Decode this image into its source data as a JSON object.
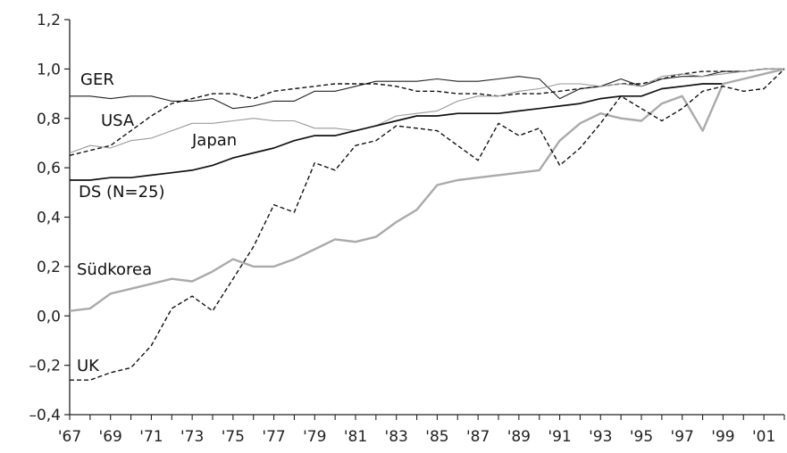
{
  "chart_data": {
    "type": "line",
    "title": "",
    "xlabel": "",
    "ylabel": "",
    "x": [
      1967,
      1968,
      1969,
      1970,
      1971,
      1972,
      1973,
      1974,
      1975,
      1976,
      1977,
      1978,
      1979,
      1980,
      1981,
      1982,
      1983,
      1984,
      1985,
      1986,
      1987,
      1988,
      1989,
      1990,
      1991,
      1992,
      1993,
      1994,
      1995,
      1996,
      1997,
      1998,
      1999,
      2000,
      2001,
      2002
    ],
    "xlim": [
      1967,
      2002
    ],
    "ylim": [
      -0.4,
      1.2
    ],
    "x_ticks": [
      1967,
      1969,
      1971,
      1973,
      1975,
      1977,
      1979,
      1981,
      1983,
      1985,
      1987,
      1989,
      1991,
      1993,
      1995,
      1997,
      1999,
      2001
    ],
    "x_tick_labels": [
      "'67",
      "'69",
      "'71",
      "'73",
      "'75",
      "'77",
      "'79",
      "'81",
      "'83",
      "'85",
      "'87",
      "'89",
      "'91",
      "'93",
      "'95",
      "'97",
      "'99",
      "'01"
    ],
    "y_ticks": [
      -0.4,
      -0.2,
      0.0,
      0.2,
      0.4,
      0.6,
      0.8,
      1.0,
      1.2
    ],
    "y_tick_labels": [
      "–0,4",
      "–0,2",
      "0,0",
      "0,2",
      "0,4",
      "0,6",
      "0,8",
      "1,0",
      "1,2"
    ],
    "grid": false,
    "legend": "inline-labels",
    "series": [
      {
        "name": "GER",
        "color": "#222222",
        "style": "solid-thin",
        "values": [
          0.89,
          0.89,
          0.88,
          0.89,
          0.89,
          0.87,
          0.87,
          0.88,
          0.84,
          0.85,
          0.87,
          0.87,
          0.91,
          0.91,
          0.93,
          0.95,
          0.95,
          0.95,
          0.96,
          0.95,
          0.95,
          0.96,
          0.97,
          0.96,
          0.88,
          0.92,
          0.93,
          0.96,
          0.93,
          0.96,
          0.97,
          0.97,
          0.99,
          0.99,
          1.0,
          1.0
        ]
      },
      {
        "name": "USA",
        "color": "#111111",
        "style": "dashed",
        "values": [
          0.65,
          0.67,
          0.69,
          0.75,
          0.81,
          0.86,
          0.88,
          0.9,
          0.9,
          0.88,
          0.91,
          0.92,
          0.93,
          0.94,
          0.94,
          0.94,
          0.93,
          0.91,
          0.91,
          0.9,
          0.9,
          0.89,
          0.9,
          0.9,
          0.91,
          0.92,
          0.93,
          0.94,
          0.94,
          0.96,
          0.98,
          0.99,
          0.99,
          0.99,
          1.0,
          1.0
        ]
      },
      {
        "name": "Japan",
        "color": "#999999",
        "style": "solid-thin",
        "values": [
          0.66,
          0.69,
          0.68,
          0.71,
          0.72,
          0.75,
          0.78,
          0.78,
          0.79,
          0.8,
          0.79,
          0.79,
          0.76,
          0.76,
          0.75,
          0.77,
          0.81,
          0.82,
          0.83,
          0.87,
          0.89,
          0.89,
          0.91,
          0.92,
          0.94,
          0.94,
          0.93,
          0.94,
          0.93,
          0.97,
          0.98,
          0.97,
          0.98,
          0.99,
          1.0,
          1.0
        ]
      },
      {
        "name": "DS (N=25)",
        "color": "#111111",
        "style": "solid",
        "values": [
          0.55,
          0.55,
          0.56,
          0.56,
          0.57,
          0.58,
          0.59,
          0.61,
          0.64,
          0.66,
          0.68,
          0.71,
          0.73,
          0.73,
          0.75,
          0.77,
          0.79,
          0.81,
          0.81,
          0.82,
          0.82,
          0.82,
          0.83,
          0.84,
          0.85,
          0.86,
          0.88,
          0.89,
          0.89,
          0.92,
          0.93,
          0.94,
          0.94,
          0.96,
          0.98,
          1.0
        ]
      },
      {
        "name": "Südkorea",
        "color": "#aaaaaa",
        "style": "solid-thick",
        "values": [
          0.02,
          0.03,
          0.09,
          0.11,
          0.13,
          0.15,
          0.14,
          0.18,
          0.23,
          0.2,
          0.2,
          0.23,
          0.27,
          0.31,
          0.3,
          0.32,
          0.38,
          0.43,
          0.53,
          0.55,
          0.56,
          0.57,
          0.58,
          0.59,
          0.71,
          0.78,
          0.82,
          0.8,
          0.79,
          0.86,
          0.89,
          0.75,
          0.94,
          0.96,
          0.98,
          1.0
        ]
      },
      {
        "name": "UK",
        "color": "#111111",
        "style": "dashed",
        "values": [
          -0.26,
          -0.26,
          -0.23,
          -0.21,
          -0.12,
          0.03,
          0.08,
          0.02,
          0.15,
          0.28,
          0.45,
          0.42,
          0.62,
          0.59,
          0.69,
          0.71,
          0.77,
          0.76,
          0.75,
          0.69,
          0.63,
          0.78,
          0.73,
          0.76,
          0.61,
          0.68,
          0.78,
          0.89,
          0.84,
          0.79,
          0.84,
          0.91,
          0.93,
          0.91,
          0.92,
          1.0
        ]
      }
    ]
  }
}
